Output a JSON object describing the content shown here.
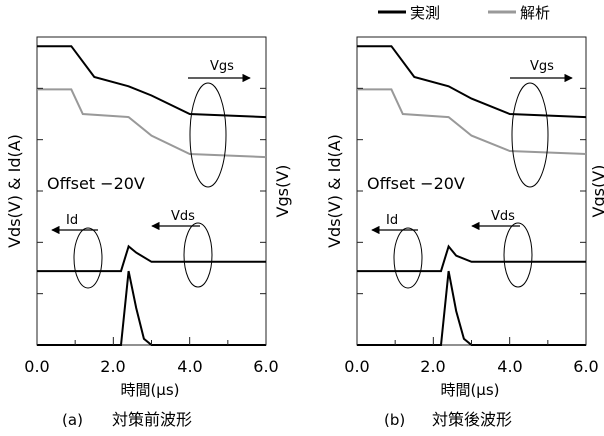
{
  "legend": {
    "measured": "実測",
    "analysis": "解析",
    "measured_color": "#000000",
    "analysis_color": "#999999"
  },
  "chart_data": [
    {
      "type": "line",
      "caption_letter": "a",
      "caption_text": "対策前波形",
      "xlabel": "時間(μs)",
      "ylabel_left": "Vds(V) & Id(A)",
      "ylabel_right": "Vgs(V)",
      "x_ticks": [
        "0.0",
        "2.0",
        "4.0",
        "6.0"
      ],
      "xlim": [
        0,
        6
      ],
      "annotations": {
        "offset": "Offset −20V",
        "vgs": "Vgs",
        "vds": "Vds",
        "id": "Id"
      },
      "series": [
        {
          "name": "実測",
          "signal": "Vgs",
          "x": [
            0,
            0.9,
            1.5,
            2.4,
            3.0,
            4.0,
            6.0
          ],
          "y": [
            0.97,
            0.97,
            0.87,
            0.84,
            0.81,
            0.75,
            0.74
          ]
        },
        {
          "name": "解析",
          "signal": "Vgs",
          "x": [
            0,
            0.9,
            1.2,
            2.4,
            3.0,
            4.0,
            6.0
          ],
          "y": [
            0.83,
            0.83,
            0.75,
            0.74,
            0.68,
            0.62,
            0.61
          ]
        },
        {
          "name": "実測",
          "signal": "Vds",
          "x": [
            0,
            2.2,
            2.4,
            2.6,
            3.0,
            4.0,
            6.0
          ],
          "y": [
            0.24,
            0.24,
            0.32,
            0.3,
            0.27,
            0.27,
            0.27
          ]
        },
        {
          "name": "実測",
          "signal": "Id",
          "x": [
            0,
            2.2,
            2.4,
            2.6,
            2.8,
            3.0,
            6.0
          ],
          "y": [
            0.0,
            0.0,
            0.24,
            0.12,
            0.02,
            0.0,
            0.0
          ]
        }
      ]
    },
    {
      "type": "line",
      "caption_letter": "b",
      "caption_text": "対策後波形",
      "xlabel": "時間(μs)",
      "ylabel_left": "Vds(V) & Id(A)",
      "ylabel_right": "Vgs(V)",
      "x_ticks": [
        "0.0",
        "2.0",
        "4.0",
        "6.0"
      ],
      "xlim": [
        0,
        6
      ],
      "annotations": {
        "offset": "Offset −20V",
        "vgs": "Vgs",
        "vds": "Vds",
        "id": "Id"
      },
      "series": [
        {
          "name": "実測",
          "signal": "Vgs",
          "x": [
            0,
            0.9,
            1.5,
            2.4,
            3.0,
            4.0,
            6.0
          ],
          "y": [
            0.97,
            0.97,
            0.87,
            0.84,
            0.8,
            0.75,
            0.74
          ]
        },
        {
          "name": "解析",
          "signal": "Vgs",
          "x": [
            0,
            0.9,
            1.2,
            2.4,
            3.0,
            4.0,
            6.0
          ],
          "y": [
            0.83,
            0.83,
            0.75,
            0.74,
            0.68,
            0.63,
            0.62
          ]
        },
        {
          "name": "実測",
          "signal": "Vds",
          "x": [
            0,
            2.2,
            2.4,
            2.6,
            3.0,
            4.0,
            6.0
          ],
          "y": [
            0.24,
            0.24,
            0.32,
            0.29,
            0.27,
            0.27,
            0.27
          ]
        },
        {
          "name": "実測",
          "signal": "Id",
          "x": [
            0,
            2.2,
            2.4,
            2.6,
            2.8,
            3.0,
            6.0
          ],
          "y": [
            0.0,
            0.0,
            0.24,
            0.11,
            0.02,
            0.0,
            0.0
          ]
        }
      ]
    }
  ]
}
